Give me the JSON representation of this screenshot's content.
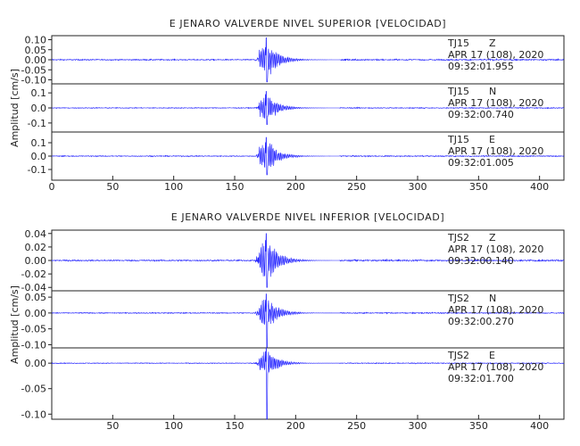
{
  "chart_data": [
    {
      "type": "line",
      "title": "E JENARO VALVERDE NIVEL SUPERIOR [VELOCIDAD]",
      "ylabel": "Amplitud [cm/s]",
      "xlabel": "",
      "xlim": [
        0,
        420
      ],
      "x_ticks": [
        0,
        50,
        100,
        150,
        200,
        250,
        300,
        350,
        400
      ],
      "line_color": "#1a1aff",
      "onset_time": 170,
      "peak_time": 176,
      "panels": [
        {
          "station": "TJ15",
          "component": "Z",
          "date": "APR 17 (108), 2020",
          "time": "09:32:01.955",
          "ylim": [
            -0.12,
            0.12
          ],
          "y_ticks": [
            "0.10",
            "0.05",
            "0.00",
            "-0.05",
            "-0.10"
          ],
          "y_tick_values": [
            0.1,
            0.05,
            0.0,
            -0.05,
            -0.1
          ],
          "peak_amp": 0.11
        },
        {
          "station": "TJ15",
          "component": "N",
          "date": "APR 17 (108), 2020",
          "time": "09:32:00.740",
          "ylim": [
            -0.16,
            0.16
          ],
          "y_ticks": [
            "0.1",
            "0.0",
            "-0.1"
          ],
          "y_tick_values": [
            0.1,
            0.0,
            -0.1
          ],
          "peak_amp": 0.11
        },
        {
          "station": "TJ15",
          "component": "E",
          "date": "APR 17 (108), 2020",
          "time": "09:32:01.005",
          "ylim": [
            -0.18,
            0.18
          ],
          "y_ticks": [
            "0.1",
            "0.0",
            "-0.1"
          ],
          "y_tick_values": [
            0.1,
            0.0,
            -0.1
          ],
          "peak_amp": 0.14
        }
      ]
    },
    {
      "type": "line",
      "title": "E JENARO VALVERDE NIVEL INFERIOR [VELOCIDAD]",
      "ylabel": "Amplitud [cm/s]",
      "xlabel": "",
      "xlim": [
        0,
        420
      ],
      "x_ticks": [
        50,
        100,
        150,
        200,
        250,
        300,
        350,
        400
      ],
      "line_color": "#1a1aff",
      "onset_time": 170,
      "peak_time": 176,
      "panels": [
        {
          "station": "TJS2",
          "component": "Z",
          "date": "APR 17 (108), 2020",
          "time": "09:32:00.140",
          "ylim": [
            -0.045,
            0.045
          ],
          "y_ticks": [
            "0.04",
            "0.02",
            "0.00",
            "-0.02",
            "-0.04"
          ],
          "y_tick_values": [
            0.04,
            0.02,
            0.0,
            -0.02,
            -0.04
          ],
          "peak_amp": 0.04
        },
        {
          "station": "TJS2",
          "component": "N",
          "date": "APR 17 (108), 2020",
          "time": "09:32:00.270",
          "ylim": [
            -0.11,
            0.07
          ],
          "y_ticks": [
            "0.05",
            "0.00",
            "-0.05",
            "-0.10"
          ],
          "y_tick_values": [
            0.05,
            0.0,
            -0.05,
            -0.1
          ],
          "peak_amp": 0.06,
          "min_amp": -0.11
        },
        {
          "station": "TJS2",
          "component": "E",
          "date": "APR 17 (108), 2020",
          "time": "09:32:01.700",
          "ylim": [
            -0.11,
            0.03
          ],
          "y_ticks": [
            "0.00",
            "-0.05",
            "-0.10"
          ],
          "y_tick_values": [
            0.0,
            -0.05,
            -0.1
          ],
          "peak_amp": 0.03,
          "min_amp": -0.11
        }
      ]
    }
  ]
}
